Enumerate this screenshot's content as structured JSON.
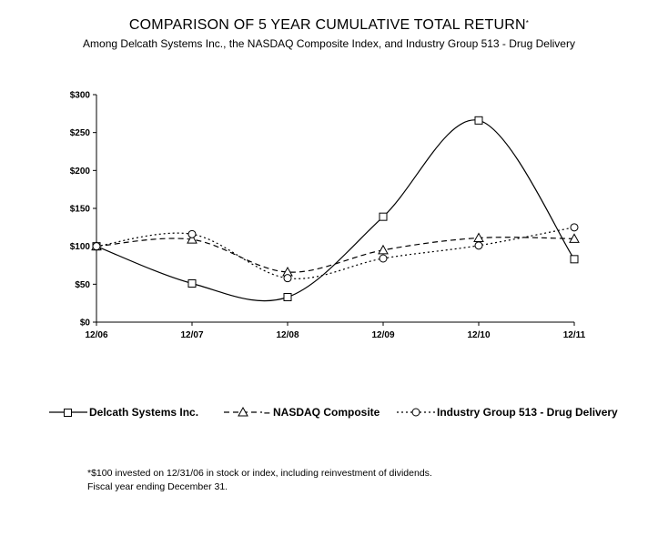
{
  "title": "COMPARISON OF 5 YEAR CUMULATIVE TOTAL RETURN",
  "title_mark": "*",
  "subtitle": "Among Delcath Systems Inc., the NASDAQ Composite Index, and Industry Group 513 - Drug Delivery",
  "chart_data": {
    "type": "line",
    "categories": [
      "12/06",
      "12/07",
      "12/08",
      "12/09",
      "12/10",
      "12/11"
    ],
    "ylim": [
      0,
      300
    ],
    "yticks": [
      0,
      50,
      100,
      150,
      200,
      250,
      300
    ],
    "ytick_labels": [
      "$0",
      "$50",
      "$100",
      "$150",
      "$200",
      "$250",
      "$300"
    ],
    "grid": false,
    "legend_position": "bottom",
    "series": [
      {
        "name": "Delcath Systems Inc.",
        "legend_label": "Delcath Systems Inc.",
        "style": "solid",
        "marker": "square",
        "values": [
          100,
          51,
          33,
          139,
          266,
          83
        ]
      },
      {
        "name": "NASDAQ Composite",
        "legend_label": "– NASDAQ Composite",
        "style": "dashed",
        "marker": "triangle",
        "values": [
          100,
          109,
          66,
          95,
          111,
          110
        ]
      },
      {
        "name": "Industry Group 513 - Drug Delivery",
        "legend_label": "Industry Group 513 - Drug Delivery",
        "style": "dotted",
        "marker": "circle",
        "values": [
          100,
          116,
          58,
          84,
          101,
          125
        ]
      }
    ]
  },
  "footnotes": [
    "*$100 invested on 12/31/06 in stock or index, including reinvestment of dividends.",
    "Fiscal year ending December 31."
  ]
}
